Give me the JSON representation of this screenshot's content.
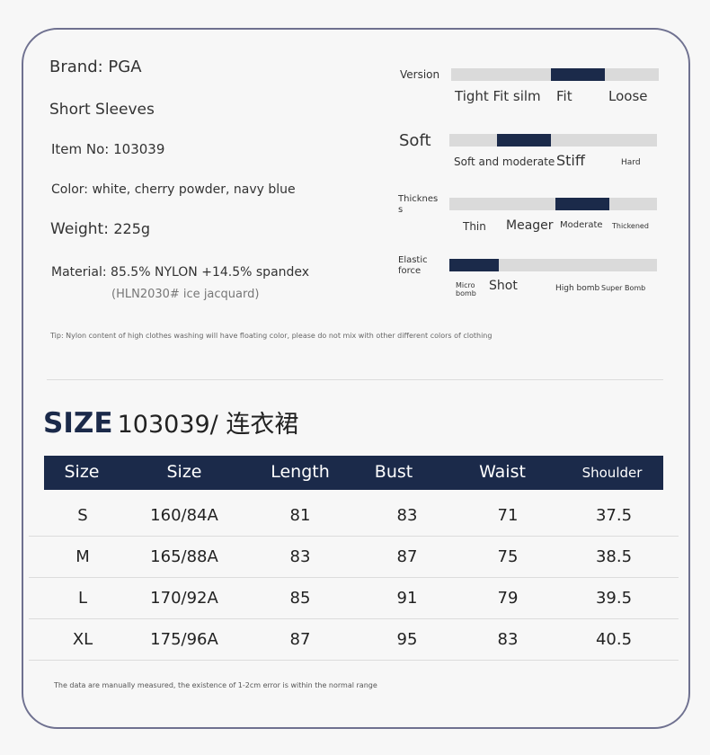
{
  "info": {
    "brand": "Brand: PGA",
    "sleeves": "Short Sleeves",
    "item_no": "Item No: 103039",
    "color": "Color: white, cherry powder, navy blue",
    "weight_label": "Weight:",
    "weight_value": "225g",
    "material": "Material: 85.5% NYLON +14.5% spandex",
    "material_sub": "(HLN2030# ice jacquard)",
    "tip": "Tip: Nylon content of high clothes washing will have floating color, please do not mix with other different colors of clothing"
  },
  "attributes": [
    {
      "label": "Version",
      "levels": [
        "Tight Fit silm",
        "Fit",
        "Loose"
      ],
      "fill_start": 0.48,
      "fill_end": 0.74
    },
    {
      "label": "Soft",
      "levels": [
        "Soft and moderate",
        "Stiff",
        "Hard"
      ],
      "fill_start": 0.23,
      "fill_end": 0.49
    },
    {
      "label": "Thicknes s",
      "levels": [
        "Thin",
        "Meager",
        "Moderate",
        "Thickened"
      ],
      "fill_start": 0.51,
      "fill_end": 0.77
    },
    {
      "label": "Elastic force",
      "levels": [
        "Micro bomb",
        "Shot",
        "High bomb",
        "Super Bomb"
      ],
      "fill_start": 0.0,
      "fill_end": 0.24
    }
  ],
  "size_section": {
    "title_bold": "SIZE",
    "title_rest": "103039/ 连衣裙"
  },
  "table": {
    "headers": [
      "Size",
      "Size",
      "Length",
      "Bust",
      "Waist",
      "Shoulder"
    ],
    "rows": [
      [
        "S",
        "160/84A",
        "81",
        "83",
        "71",
        "37.5"
      ],
      [
        "M",
        "165/88A",
        "83",
        "87",
        "75",
        "38.5"
      ],
      [
        "L",
        "170/92A",
        "85",
        "91",
        "79",
        "39.5"
      ],
      [
        "XL",
        "175/96A",
        "87",
        "95",
        "83",
        "40.5"
      ]
    ]
  },
  "note": "The data are manually measured, the existence of 1-2cm error is within the normal range",
  "colors": {
    "accent": "#1b2a4a",
    "bar": "#dadada",
    "frame": "#6f7190"
  }
}
